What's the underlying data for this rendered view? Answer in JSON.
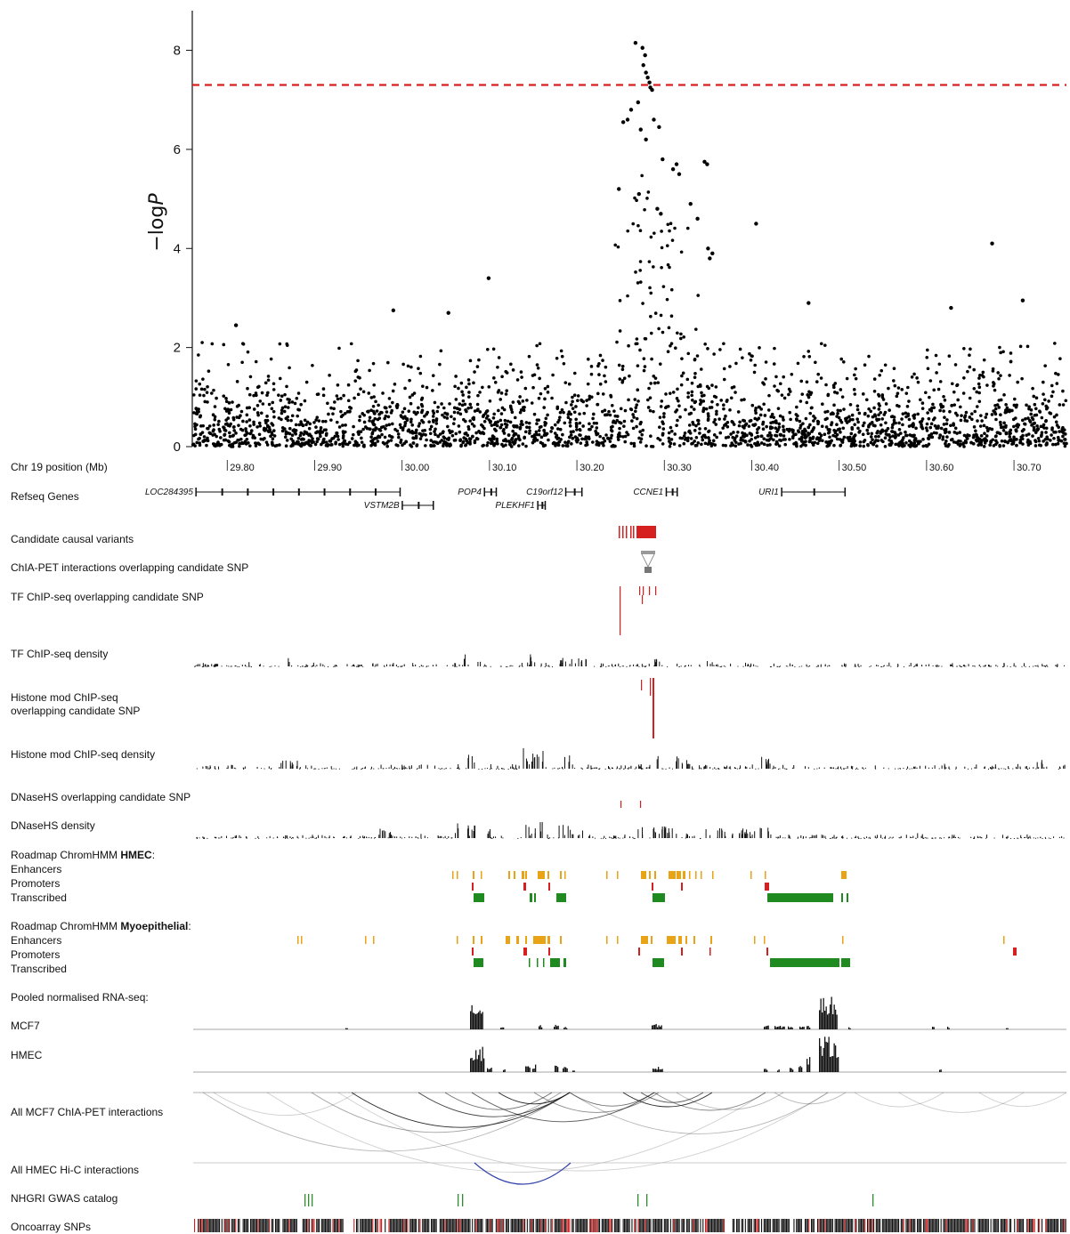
{
  "chart_data": {
    "type": "scatter",
    "title": "",
    "xlabel": "Chr 19 position (Mb)",
    "ylabel_prefix": "−log",
    "ylabel_var": "P",
    "xlim": [
      29.76,
      30.76
    ],
    "ylim": [
      0,
      8.8
    ],
    "yticks": [
      0,
      2,
      4,
      6,
      8
    ],
    "xticks": [
      "29.80",
      "29.90",
      "30.00",
      "30.10",
      "30.20",
      "30.30",
      "30.40",
      "30.50",
      "30.60",
      "30.70"
    ],
    "xtick_values": [
      29.8,
      29.9,
      30.0,
      30.1,
      30.2,
      30.3,
      30.4,
      30.5,
      30.6,
      30.7
    ],
    "significance_threshold": 7.3,
    "threshold_color": "#d62020",
    "point_color": "#000000",
    "highlight_points": [
      {
        "x": 30.267,
        "y": 8.15
      },
      {
        "x": 30.275,
        "y": 8.05
      },
      {
        "x": 30.278,
        "y": 7.9
      },
      {
        "x": 30.276,
        "y": 7.7
      },
      {
        "x": 30.279,
        "y": 7.55
      },
      {
        "x": 30.281,
        "y": 7.45
      },
      {
        "x": 30.283,
        "y": 7.35
      },
      {
        "x": 30.284,
        "y": 7.25
      },
      {
        "x": 30.286,
        "y": 7.2
      },
      {
        "x": 30.27,
        "y": 6.95
      },
      {
        "x": 30.262,
        "y": 6.8
      },
      {
        "x": 30.258,
        "y": 6.6
      },
      {
        "x": 30.253,
        "y": 6.55
      },
      {
        "x": 30.288,
        "y": 6.6
      },
      {
        "x": 30.294,
        "y": 6.45
      },
      {
        "x": 30.273,
        "y": 6.4
      },
      {
        "x": 30.279,
        "y": 6.2
      },
      {
        "x": 30.298,
        "y": 5.8
      },
      {
        "x": 30.31,
        "y": 5.6
      },
      {
        "x": 30.314,
        "y": 5.7
      },
      {
        "x": 30.317,
        "y": 5.5
      },
      {
        "x": 30.346,
        "y": 5.75
      },
      {
        "x": 30.349,
        "y": 5.7
      },
      {
        "x": 30.248,
        "y": 5.2
      },
      {
        "x": 30.271,
        "y": 5.1
      },
      {
        "x": 30.292,
        "y": 4.8
      },
      {
        "x": 30.296,
        "y": 4.7
      },
      {
        "x": 30.33,
        "y": 4.9
      },
      {
        "x": 30.338,
        "y": 4.6
      },
      {
        "x": 30.35,
        "y": 4.0
      },
      {
        "x": 30.355,
        "y": 3.9
      },
      {
        "x": 30.352,
        "y": 3.8
      },
      {
        "x": 30.405,
        "y": 4.5
      },
      {
        "x": 30.675,
        "y": 4.1
      },
      {
        "x": 30.099,
        "y": 3.4
      },
      {
        "x": 29.99,
        "y": 2.75
      },
      {
        "x": 30.053,
        "y": 2.7
      },
      {
        "x": 30.465,
        "y": 2.9
      },
      {
        "x": 30.628,
        "y": 2.8
      },
      {
        "x": 30.71,
        "y": 2.95
      },
      {
        "x": 29.81,
        "y": 2.45
      }
    ]
  },
  "labels": {
    "chr_position": "Chr 19 position (Mb)",
    "refseq": "Refseq Genes",
    "candidate_causal": "Candidate causal variants",
    "chiapet_overlap": "ChIA-PET interactions overlapping candidate SNP",
    "tf_chipseq_overlap": "TF ChIP-seq overlapping candidate SNP",
    "tf_chipseq_density": "TF ChIP-seq density",
    "histone_overlap_1": "Histone mod ChIP-seq",
    "histone_overlap_2": "overlapping candidate SNP",
    "histone_density": "Histone mod ChIP-seq density",
    "dnase_overlap": "DNaseHS overlapping candidate SNP",
    "dnase_density": "DNaseHS density",
    "roadmap_prefix": "Roadmap ChromHMM ",
    "hmec_bold": "HMEC",
    "hmec_suffix": ":",
    "myo_bold": "Myoepithelial",
    "myo_suffix": ":",
    "enhancers": "Enhancers",
    "promoters": "Promoters",
    "transcribed": "Transcribed",
    "pooled_rnaseq": "Pooled normalised RNA-seq:",
    "mcf7": "MCF7",
    "hmec": "HMEC",
    "mcf7_chiapet": "All MCF7 ChIA-PET interactions",
    "hmec_hic": "All HMEC Hi-C interactions",
    "nhgri": "NHGRI GWAS catalog",
    "oncoarray": "Oncoarray SNPs"
  },
  "genes": [
    {
      "name": "LOC284395",
      "start": 29.764,
      "end": 29.998,
      "row": 0
    },
    {
      "name": "VSTM2B",
      "start": 30.0,
      "end": 30.036,
      "row": 1
    },
    {
      "name": "POP4",
      "start": 30.094,
      "end": 30.108,
      "row": 0
    },
    {
      "name": "C19orf12",
      "start": 30.187,
      "end": 30.206,
      "row": 0
    },
    {
      "name": "PLEKHF1",
      "start": 30.155,
      "end": 30.164,
      "row": 1
    },
    {
      "name": "CCNE1",
      "start": 30.302,
      "end": 30.315,
      "row": 0
    },
    {
      "name": "URI1",
      "start": 30.434,
      "end": 30.507,
      "row": 0
    }
  ],
  "colors": {
    "variants": "#d62020",
    "enhancer": "#e8a317",
    "promoter": "#d62020",
    "transcribed": "#1f8a1f",
    "gwas": "#2e8b2e",
    "hic_arc": "#3344aa",
    "chiapet_box": "#888888"
  }
}
